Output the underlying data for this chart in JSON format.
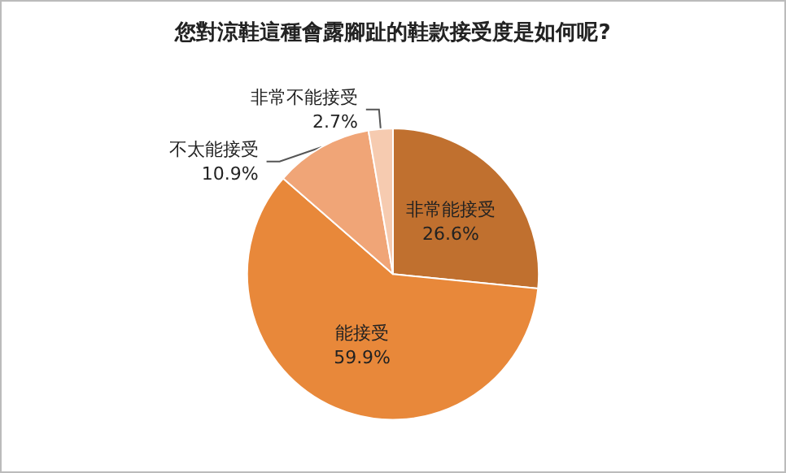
{
  "chart_data": {
    "type": "pie",
    "title": "您對涼鞋這種會露腳趾的鞋款接受度是如何呢?",
    "categories": [
      "非常能接受",
      "能接受",
      "不太能接受",
      "非常不能接受"
    ],
    "values": [
      26.6,
      59.9,
      10.9,
      2.7
    ],
    "value_labels": [
      "26.6%",
      "59.9%",
      "10.9%",
      "2.7%"
    ],
    "colors": [
      "#c0702f",
      "#e8883a",
      "#f0a577",
      "#f6cbb0"
    ],
    "legend": false
  }
}
